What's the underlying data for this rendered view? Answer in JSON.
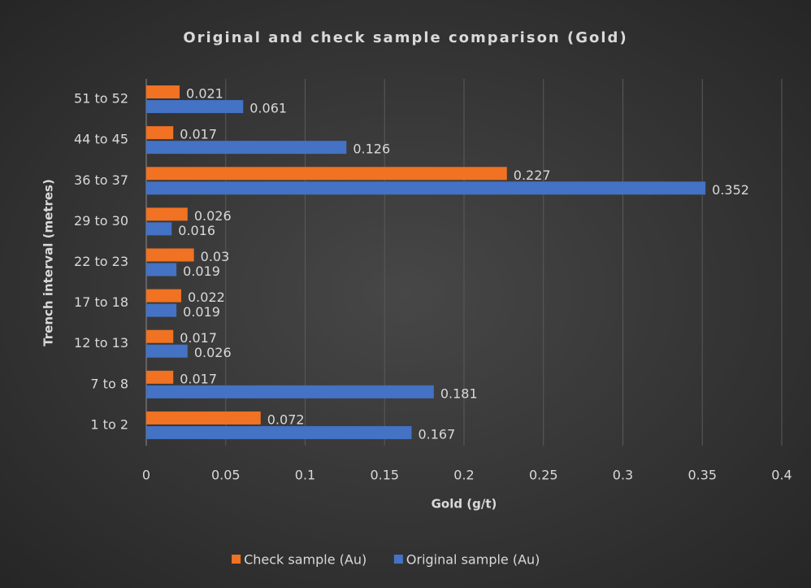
{
  "chart_data": {
    "type": "bar",
    "orientation": "horizontal",
    "title": "Original and check sample comparison (Gold)",
    "x_label": "Gold (g/t)",
    "y_label": "Trench interval (metres)",
    "categories": [
      "1 to 2",
      "7 to 8",
      "12 to 13",
      "17 to 18",
      "22 to 23",
      "29 to 30",
      "36 to 37",
      "44 to 45",
      "51 to 52"
    ],
    "series": [
      {
        "name": "Check sample (Au)",
        "color": "#f07222",
        "values": [
          0.072,
          0.017,
          0.017,
          0.022,
          0.03,
          0.026,
          0.227,
          0.017,
          0.021
        ]
      },
      {
        "name": "Original sample (Au)",
        "color": "#4472c4",
        "values": [
          0.167,
          0.181,
          0.026,
          0.019,
          0.019,
          0.016,
          0.352,
          0.126,
          0.061
        ]
      }
    ],
    "xlim": [
      0,
      0.4
    ],
    "xticks": [
      0,
      0.05,
      0.1,
      0.15,
      0.2,
      0.25,
      0.3,
      0.35,
      0.4
    ],
    "grid": true,
    "legend": "bottom"
  }
}
